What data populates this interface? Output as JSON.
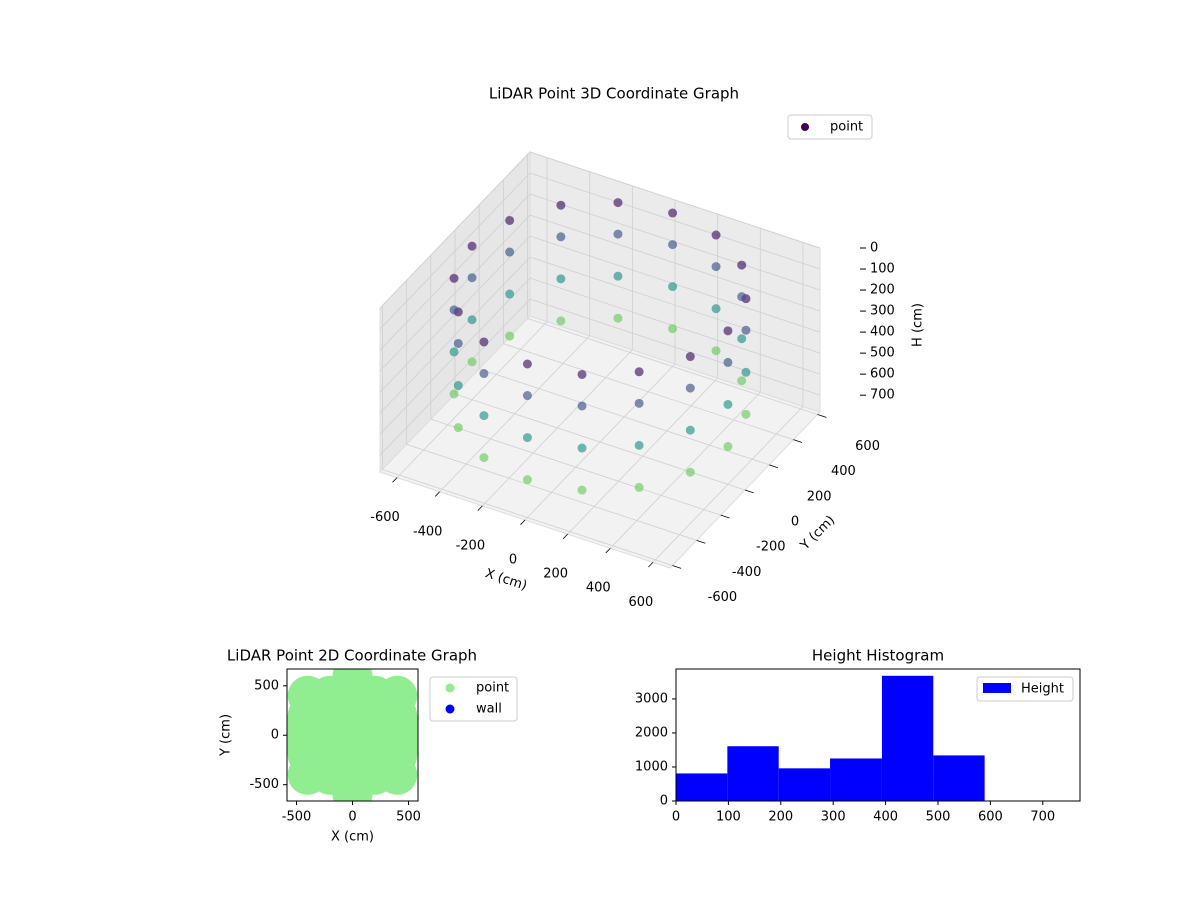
{
  "chart_data": [
    {
      "type": "scatter3d",
      "title": "LiDAR Point 3D Coordinate Graph",
      "xlabel": "X (cm)",
      "ylabel": "Y (cm)",
      "zlabel": "H (cm)",
      "xlim": [
        -680,
        680
      ],
      "ylim": [
        -620,
        620
      ],
      "zlim": [
        0,
        780
      ],
      "z_inverted": true,
      "xticks": [
        -600,
        -400,
        -200,
        0,
        200,
        400,
        600
      ],
      "yticks": [
        -600,
        -400,
        -200,
        0,
        200,
        400,
        600
      ],
      "zticks": [
        0,
        100,
        200,
        300,
        400,
        500,
        600,
        700
      ],
      "grid": true,
      "cmap": "viridis",
      "legend": "upper right",
      "series": [
        {
          "name": "point",
          "color": "#440154",
          "x": [
            600,
            554,
            424,
            230,
            0,
            -230,
            -424,
            -554,
            -600,
            -554,
            -424,
            -230,
            0,
            230,
            424,
            554,
            600,
            554,
            424,
            230,
            0,
            -230,
            -424,
            -554,
            -600,
            -554,
            -424,
            -230,
            0,
            230,
            424,
            554,
            600,
            554,
            424,
            230,
            0,
            -230,
            -424,
            -554,
            -600,
            -554,
            -424,
            -230,
            0,
            230,
            424,
            554,
            600,
            554,
            424,
            230,
            0,
            -230,
            -424,
            -554,
            -600,
            -554,
            -424,
            -230,
            0,
            230,
            424,
            554
          ],
          "y": [
            0,
            230,
            424,
            554,
            600,
            554,
            424,
            230,
            0,
            -230,
            -424,
            -554,
            -600,
            -554,
            -424,
            -230,
            0,
            230,
            424,
            554,
            600,
            554,
            424,
            230,
            0,
            -230,
            -424,
            -554,
            -600,
            -554,
            -424,
            -230,
            0,
            230,
            424,
            554,
            600,
            554,
            424,
            230,
            0,
            -230,
            -424,
            -554,
            -600,
            -554,
            -424,
            -230,
            0,
            230,
            424,
            554,
            600,
            554,
            424,
            230,
            0,
            -230,
            -424,
            -554,
            -600,
            -554,
            -424,
            -230
          ],
          "z": [
            50,
            50,
            50,
            50,
            50,
            50,
            50,
            50,
            50,
            50,
            50,
            50,
            50,
            50,
            50,
            50,
            200,
            200,
            200,
            200,
            200,
            200,
            200,
            200,
            200,
            200,
            200,
            200,
            200,
            200,
            200,
            200,
            400,
            400,
            400,
            400,
            400,
            400,
            400,
            400,
            400,
            400,
            400,
            400,
            400,
            400,
            400,
            400,
            600,
            600,
            600,
            600,
            600,
            600,
            600,
            600,
            600,
            600,
            600,
            600,
            600,
            600,
            600,
            600
          ]
        }
      ]
    },
    {
      "type": "scatter",
      "title": "LiDAR Point 2D Coordinate Graph",
      "xlabel": "X (cm)",
      "ylabel": "Y (cm)",
      "xlim": [
        -585,
        585
      ],
      "ylim": [
        -665,
        670
      ],
      "xticks": [
        -500,
        0,
        500
      ],
      "yticks": [
        -500,
        0,
        500
      ],
      "legend": "outside upper right",
      "series": [
        {
          "name": "point",
          "color": "#90ee90",
          "x": [
            -400,
            -400,
            -400,
            -400,
            -400,
            -200,
            -200,
            -200,
            -200,
            -200,
            0,
            0,
            0,
            0,
            0,
            200,
            200,
            200,
            200,
            200,
            400,
            400,
            400,
            400,
            400,
            0,
            0,
            600,
            -600
          ],
          "y": [
            -400,
            -200,
            0,
            200,
            400,
            -400,
            -200,
            0,
            200,
            400,
            -400,
            -200,
            0,
            200,
            400,
            -400,
            -200,
            0,
            200,
            400,
            -400,
            -200,
            0,
            200,
            400,
            600,
            -600,
            0,
            0
          ]
        },
        {
          "name": "wall",
          "color": "#0000ff",
          "x": [],
          "y": []
        }
      ]
    },
    {
      "type": "histogram",
      "title": "Height Histogram",
      "xlim": [
        0,
        771
      ],
      "ylim": [
        0,
        3880
      ],
      "xticks": [
        0,
        100,
        200,
        300,
        400,
        500,
        600,
        700
      ],
      "yticks": [
        0,
        1000,
        2000,
        3000
      ],
      "legend": "upper right",
      "series": [
        {
          "name": "Height",
          "color": "#0000ff",
          "bins": [
            0,
            98,
            196,
            294,
            393,
            491,
            589,
            687,
            785
          ],
          "counts": [
            810,
            1610,
            960,
            1250,
            3680,
            1340,
            0,
            0
          ]
        }
      ]
    }
  ]
}
